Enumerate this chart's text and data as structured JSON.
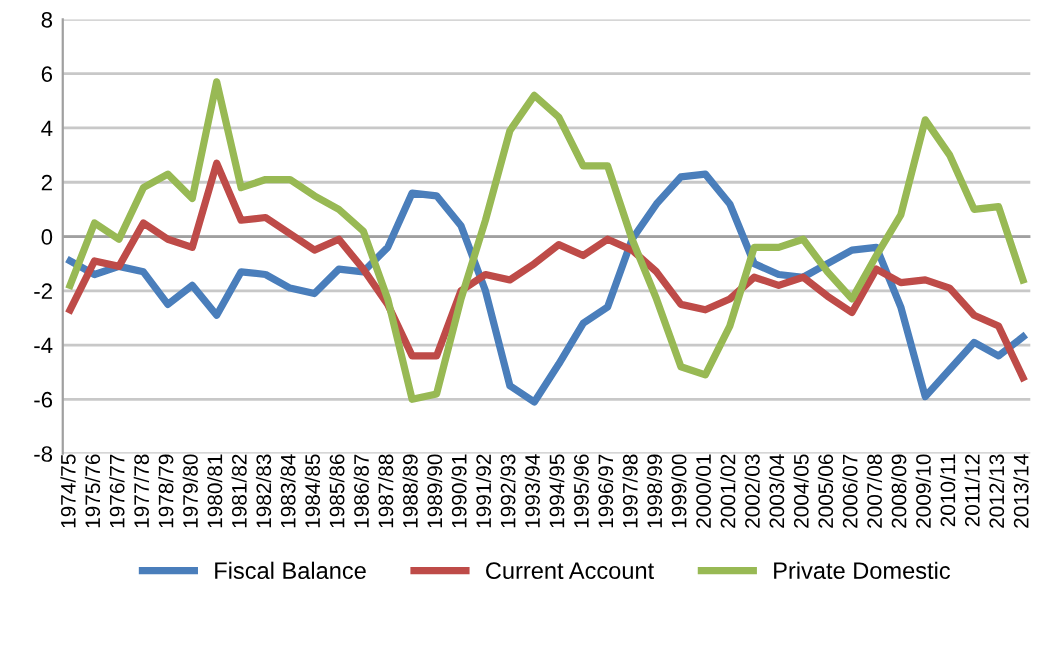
{
  "chart_data": {
    "type": "line",
    "categories": [
      "1974/75",
      "1975/76",
      "1976/77",
      "1977/78",
      "1978/79",
      "1979/80",
      "1980/81",
      "1981/82",
      "1982/83",
      "1983/84",
      "1984/85",
      "1985/86",
      "1986/87",
      "1987/88",
      "1988/89",
      "1989/90",
      "1990/91",
      "1991/92",
      "1992/93",
      "1993/94",
      "1994/95",
      "1995/96",
      "1996/97",
      "1997/98",
      "1998/99",
      "1999/00",
      "2000/01",
      "2001/02",
      "2002/03",
      "2003/04",
      "2004/05",
      "2005/06",
      "2006/07",
      "2007/08",
      "2008/09",
      "2009/10",
      "2010/11",
      "2011/12",
      "2012/13",
      "2013/14"
    ],
    "series": [
      {
        "name": "Fiscal Balance",
        "color": "#4a7ebb",
        "values": [
          -0.9,
          -1.4,
          -1.1,
          -1.3,
          -2.5,
          -1.8,
          -2.9,
          -1.3,
          -1.4,
          -1.9,
          -2.1,
          -1.2,
          -1.3,
          -0.4,
          1.6,
          1.5,
          0.4,
          -2.0,
          -5.5,
          -6.1,
          -4.7,
          -3.2,
          -2.6,
          -0.1,
          1.2,
          2.2,
          2.3,
          1.2,
          -1.0,
          -1.4,
          -1.5,
          -1.0,
          -0.5,
          -0.4,
          -2.6,
          -5.9,
          -4.9,
          -3.9,
          -4.4,
          -3.7
        ]
      },
      {
        "name": "Current Account",
        "color": "#be4b48",
        "values": [
          -2.7,
          -0.9,
          -1.1,
          0.5,
          -0.1,
          -0.4,
          2.7,
          0.6,
          0.7,
          0.1,
          -0.5,
          -0.1,
          -1.2,
          -2.5,
          -4.4,
          -4.4,
          -2.0,
          -1.4,
          -1.6,
          -1.0,
          -0.3,
          -0.7,
          -0.1,
          -0.5,
          -1.3,
          -2.5,
          -2.7,
          -2.3,
          -1.5,
          -1.8,
          -1.5,
          -2.2,
          -2.8,
          -1.2,
          -1.7,
          -1.6,
          -1.9,
          -2.9,
          -3.3,
          -5.2
        ]
      },
      {
        "name": "Private Domestic",
        "color": "#98b954",
        "values": [
          -1.8,
          0.5,
          -0.1,
          1.8,
          2.3,
          1.4,
          5.7,
          1.8,
          2.1,
          2.1,
          1.5,
          1.0,
          0.2,
          -2.3,
          -6.0,
          -5.8,
          -2.3,
          0.6,
          3.9,
          5.2,
          4.4,
          2.6,
          2.6,
          -0.1,
          -2.3,
          -4.8,
          -5.1,
          -3.3,
          -0.4,
          -0.4,
          -0.1,
          -1.3,
          -2.3,
          -0.7,
          0.8,
          4.3,
          3.0,
          1.0,
          1.1,
          -1.6
        ]
      }
    ],
    "ylim": [
      -8,
      8
    ],
    "yticks": [
      -8,
      -6,
      -4,
      -2,
      0,
      2,
      4,
      6,
      8
    ],
    "grid": "y",
    "legend": "bottom",
    "line_style": "solid",
    "marker": "none"
  }
}
